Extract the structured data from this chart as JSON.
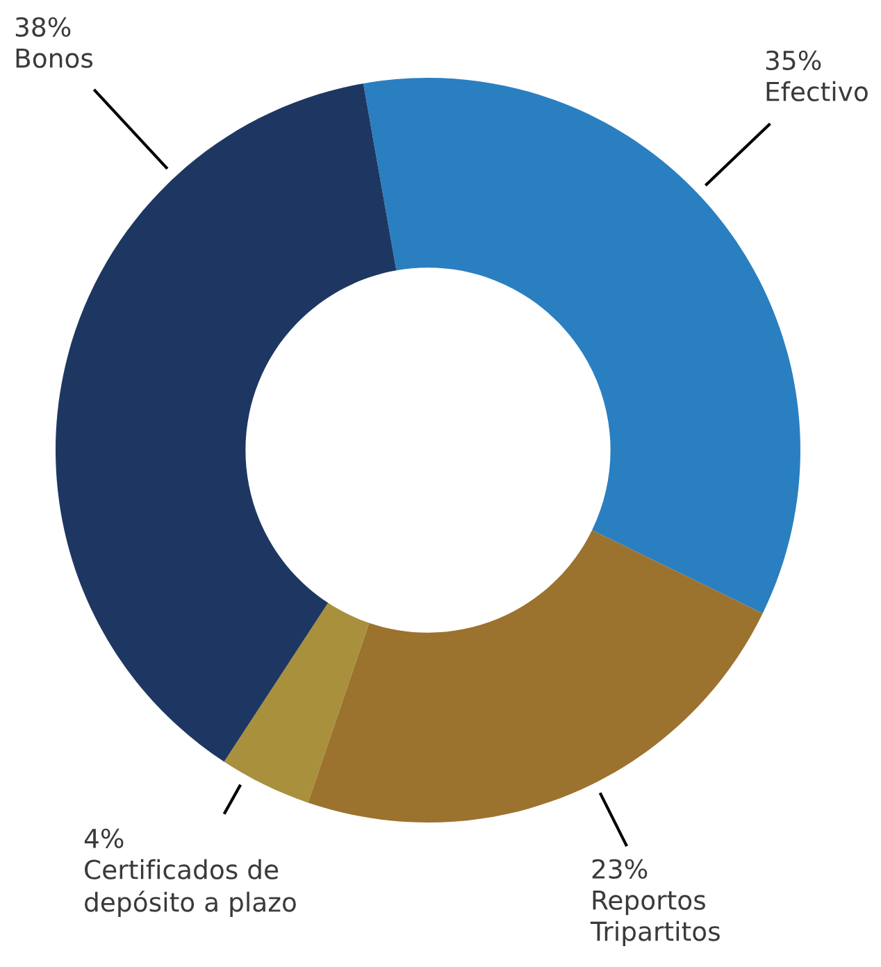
{
  "chart_data": {
    "type": "donut",
    "categories": [
      "Efectivo",
      "Reportos\nTripartitos",
      "Certificados de\ndepósito a plazo",
      "Bonos"
    ],
    "values": [
      35,
      23,
      4,
      38
    ],
    "value_labels": [
      "35%",
      "23%",
      "4%",
      "38%"
    ],
    "colors": [
      "#2a7fc0",
      "#9c722f",
      "#a8903c",
      "#1e3762"
    ]
  }
}
